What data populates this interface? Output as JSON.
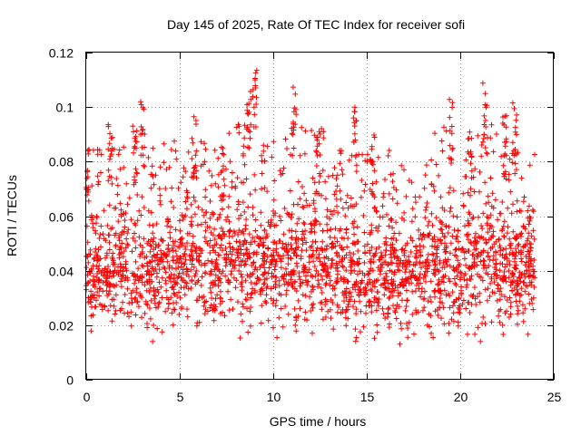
{
  "chart_data": {
    "type": "scatter",
    "title": "Day 145 of 2025, Rate Of TEC Index for receiver sofi",
    "xlabel": "GPS time / hours",
    "ylabel": "ROTI / TECUs",
    "xlim": [
      0,
      25
    ],
    "ylim": [
      0,
      0.12
    ],
    "xticks": [
      0,
      5,
      10,
      15,
      20,
      25
    ],
    "yticks": [
      0,
      0.02,
      0.04,
      0.06,
      0.08,
      0.1,
      0.12
    ],
    "x_tick_labels": [
      "0",
      "5",
      "10",
      "15",
      "20",
      "25"
    ],
    "y_tick_labels": [
      "0",
      "0.02",
      "0.04",
      "0.06",
      "0.08",
      "0.1",
      "0.12"
    ],
    "grid": true,
    "marker": "+",
    "color": "#ff0000",
    "data_range": {
      "x_min": 0,
      "x_max": 24
    },
    "series": [
      {
        "name": "ROTI",
        "band_center": [
          0.041,
          0.04,
          0.045,
          0.038,
          0.042,
          0.044,
          0.043,
          0.04,
          0.046,
          0.044,
          0.041,
          0.043,
          0.045,
          0.042,
          0.04,
          0.039,
          0.041,
          0.038,
          0.04,
          0.043,
          0.036,
          0.045,
          0.042,
          0.04,
          0.04
        ],
        "band_width": [
          0.03,
          0.032,
          0.032,
          0.03,
          0.03,
          0.03,
          0.032,
          0.03,
          0.032,
          0.034,
          0.032,
          0.034,
          0.034,
          0.032,
          0.03,
          0.03,
          0.03,
          0.028,
          0.03,
          0.036,
          0.028,
          0.034,
          0.034,
          0.032,
          0.03
        ],
        "peaks": [
          {
            "x": 0.1,
            "y": 0.088
          },
          {
            "x": 1.3,
            "y": 0.094
          },
          {
            "x": 2.6,
            "y": 0.096
          },
          {
            "x": 3.0,
            "y": 0.103
          },
          {
            "x": 5.8,
            "y": 0.097
          },
          {
            "x": 7.3,
            "y": 0.086
          },
          {
            "x": 8.7,
            "y": 0.107
          },
          {
            "x": 9.0,
            "y": 0.117
          },
          {
            "x": 11.1,
            "y": 0.109
          },
          {
            "x": 12.4,
            "y": 0.092
          },
          {
            "x": 14.4,
            "y": 0.101
          },
          {
            "x": 15.3,
            "y": 0.092
          },
          {
            "x": 19.5,
            "y": 0.103
          },
          {
            "x": 20.5,
            "y": 0.092
          },
          {
            "x": 21.3,
            "y": 0.109
          },
          {
            "x": 22.4,
            "y": 0.097
          },
          {
            "x": 22.9,
            "y": 0.103
          },
          {
            "x": 23.7,
            "y": 0.063
          }
        ],
        "minimum": 0.012,
        "maximum": 0.117
      }
    ]
  }
}
